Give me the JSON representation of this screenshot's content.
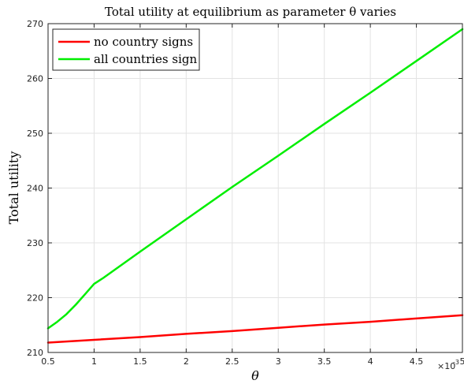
{
  "chart_data": {
    "type": "line",
    "title": "Total utility at equilibrium as parameter θ varies",
    "xlabel": "θ",
    "ylabel": "Total utility",
    "x_multiplier": "×10",
    "x_multiplier_exp": "-3",
    "xlim": [
      0.5,
      5
    ],
    "ylim": [
      210,
      270
    ],
    "xticks": [
      0.5,
      1,
      1.5,
      2,
      2.5,
      3,
      3.5,
      4,
      4.5,
      5
    ],
    "xtick_labels": [
      "0.5",
      "1",
      "1.5",
      "2",
      "2.5",
      "3",
      "3.5",
      "4",
      "4.5",
      "5"
    ],
    "yticks": [
      210,
      220,
      230,
      240,
      250,
      260,
      270
    ],
    "ytick_labels": [
      "210",
      "220",
      "230",
      "240",
      "250",
      "260",
      "270"
    ],
    "grid": true,
    "legend_position": "top-left",
    "series": [
      {
        "name": "no country signs",
        "color": "#ff0000",
        "x": [
          0.5,
          1,
          1.5,
          2,
          2.5,
          3,
          3.5,
          4,
          4.5,
          5
        ],
        "y": [
          211.8,
          212.3,
          212.8,
          213.4,
          213.9,
          214.5,
          215.1,
          215.6,
          216.2,
          216.8
        ]
      },
      {
        "name": "all countries sign",
        "color": "#00ee00",
        "x": [
          0.5,
          0.6,
          0.7,
          0.8,
          0.9,
          1.0,
          1.1,
          1.5,
          2,
          2.5,
          3,
          3.5,
          4,
          4.5,
          5
        ],
        "y": [
          214.4,
          215.6,
          217.0,
          218.7,
          220.6,
          222.5,
          223.6,
          228.4,
          234.3,
          240.2,
          245.9,
          251.7,
          257.4,
          263.2,
          269.0
        ]
      }
    ]
  }
}
